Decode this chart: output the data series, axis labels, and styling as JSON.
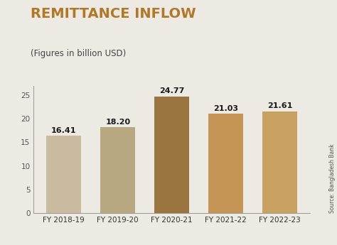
{
  "title": "REMITTANCE INFLOW",
  "subtitle": "(Figures in billion USD)",
  "categories": [
    "FY 2018-19",
    "FY 2019-20",
    "FY 2020-21",
    "FY 2021-22",
    "FY 2022-23"
  ],
  "values": [
    16.41,
    18.2,
    24.77,
    21.03,
    21.61
  ],
  "bar_colors": [
    "#c8bba0",
    "#b8a882",
    "#9b7540",
    "#c49555",
    "#c8a060"
  ],
  "background_color": "#ede9e3",
  "title_color": "#b07828",
  "subtitle_color": "#444444",
  "label_color": "#1a1a1a",
  "source_text": "Source: Bangladesh Bank",
  "ylim": [
    0,
    27
  ],
  "yticks": [
    0,
    5,
    10,
    15,
    20,
    25
  ],
  "title_fontsize": 14,
  "subtitle_fontsize": 8.5,
  "bar_label_fontsize": 8,
  "tick_fontsize": 7.5,
  "source_fontsize": 5.5
}
